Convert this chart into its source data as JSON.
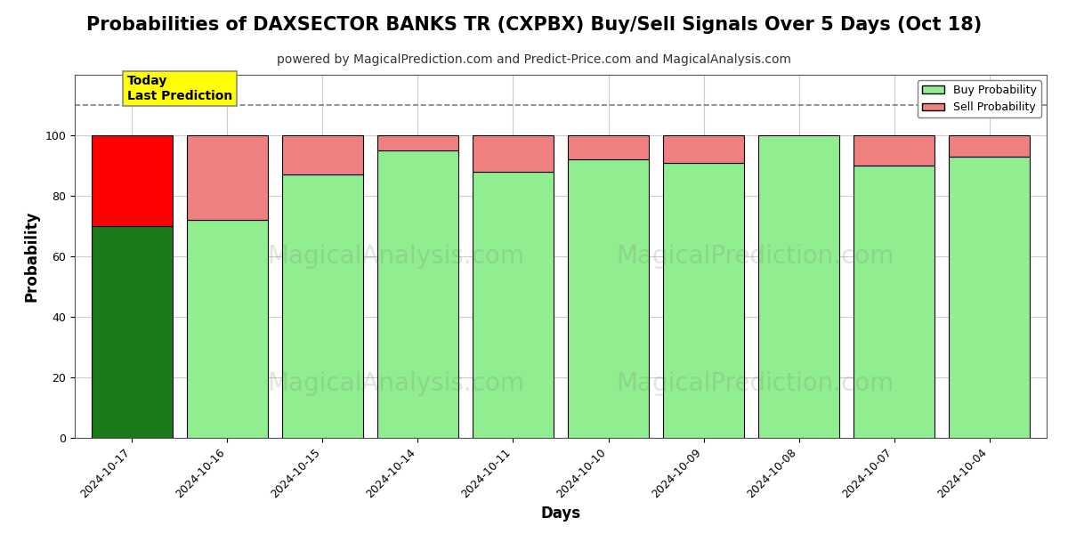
{
  "title": "Probabilities of DAXSECTOR BANKS TR (CXPBX) Buy/Sell Signals Over 5 Days (Oct 18)",
  "subtitle": "powered by MagicalPrediction.com and Predict-Price.com and MagicalAnalysis.com",
  "xlabel": "Days",
  "ylabel": "Probability",
  "dates": [
    "2024-10-17",
    "2024-10-16",
    "2024-10-15",
    "2024-10-14",
    "2024-10-11",
    "2024-10-10",
    "2024-10-09",
    "2024-10-08",
    "2024-10-07",
    "2024-10-04"
  ],
  "buy_probs": [
    70,
    72,
    87,
    95,
    88,
    92,
    91,
    100,
    90,
    93
  ],
  "sell_probs": [
    30,
    28,
    13,
    5,
    12,
    8,
    9,
    0,
    10,
    7
  ],
  "today_idx": 0,
  "today_buy_color": "#1a7a1a",
  "today_sell_color": "#ff0000",
  "normal_buy_color": "#90ee90",
  "normal_sell_color": "#f08080",
  "bar_edge_color": "#000000",
  "today_label_bg": "#ffff00",
  "today_label_text": "Today\nLast Prediction",
  "ylim": [
    0,
    120
  ],
  "dashed_line_y": 110,
  "watermark1": "MagicalAnalysis.com",
  "watermark2": "MagicalPrediction.com",
  "legend_buy_label": "Buy Probability",
  "legend_sell_label": "Sell Probability",
  "grid_color": "#cccccc",
  "background_color": "#ffffff",
  "title_fontsize": 15,
  "subtitle_fontsize": 10,
  "axis_label_fontsize": 12,
  "tick_fontsize": 9,
  "bar_width": 0.85
}
